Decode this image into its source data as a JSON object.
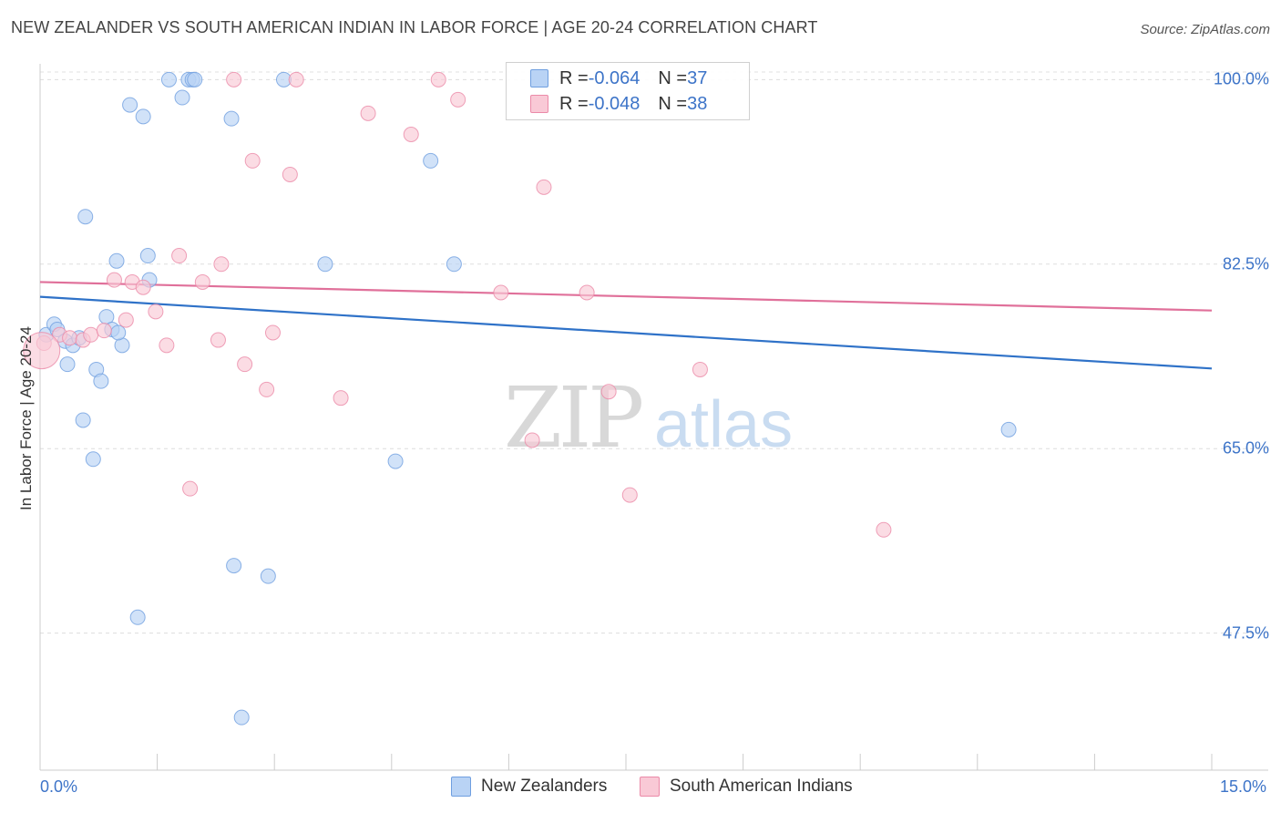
{
  "title": "NEW ZEALANDER VS SOUTH AMERICAN INDIAN IN LABOR FORCE | AGE 20-24 CORRELATION CHART",
  "source": "Source: ZipAtlas.com",
  "watermark": {
    "zip": "ZIP",
    "atlas": "atlas"
  },
  "legend": {
    "rows": [
      {
        "r_label": "R = ",
        "r_value": "-0.064",
        "n_label": "N = ",
        "n_value": "37"
      },
      {
        "r_label": "R = ",
        "r_value": "-0.048",
        "n_label": "N = ",
        "n_value": "38"
      }
    ]
  },
  "chart_data": {
    "type": "scatter",
    "title": "NEW ZEALANDER VS SOUTH AMERICAN INDIAN IN LABOR FORCE | AGE 20-24 CORRELATION CHART",
    "xlabel": "",
    "ylabel": "In Labor Force | Age 20-24",
    "xlim": [
      0,
      15
    ],
    "ylim": [
      34.5,
      101.5
    ],
    "x_tick_labels": [
      "0.0%",
      "15.0%"
    ],
    "y_tick_values": [
      100.0,
      82.5,
      65.0,
      47.5
    ],
    "y_tick_labels": [
      "100.0%",
      "82.5%",
      "65.0%",
      "47.5%"
    ],
    "grid": true,
    "colors": {
      "blue": "#6f9fe0",
      "blue_fill": "#b9d3f5",
      "blue_line": "#2f72c8",
      "pink": "#eb8aa8",
      "pink_fill": "#f9c9d6",
      "pink_line": "#e0709a"
    },
    "series": [
      {
        "name": "New Zealanders",
        "r": -0.064,
        "n": 37,
        "trend": {
          "x": [
            0,
            15
          ],
          "y": [
            79.4,
            72.6
          ]
        },
        "points": [
          [
            0.08,
            75.8
          ],
          [
            0.18,
            76.8
          ],
          [
            0.22,
            76.3
          ],
          [
            0.32,
            75.2
          ],
          [
            0.35,
            73.0
          ],
          [
            0.42,
            74.8
          ],
          [
            0.55,
            67.7
          ],
          [
            0.58,
            87.0
          ],
          [
            0.68,
            64.0
          ],
          [
            0.72,
            72.5
          ],
          [
            0.78,
            71.4
          ],
          [
            0.85,
            77.5
          ],
          [
            0.92,
            76.3
          ],
          [
            0.98,
            82.8
          ],
          [
            1.05,
            74.8
          ],
          [
            1.15,
            97.6
          ],
          [
            1.25,
            49.0
          ],
          [
            1.32,
            96.5
          ],
          [
            1.38,
            83.3
          ],
          [
            1.4,
            81.0
          ],
          [
            1.65,
            100.0
          ],
          [
            1.82,
            98.3
          ],
          [
            1.9,
            100.0
          ],
          [
            1.95,
            100.0
          ],
          [
            1.98,
            100.0
          ],
          [
            2.45,
            96.3
          ],
          [
            2.48,
            53.9
          ],
          [
            2.58,
            39.5
          ],
          [
            2.92,
            52.9
          ],
          [
            3.12,
            100.0
          ],
          [
            3.65,
            82.5
          ],
          [
            4.55,
            63.8
          ],
          [
            5.0,
            92.3
          ],
          [
            5.3,
            82.5
          ],
          [
            12.4,
            66.8
          ],
          [
            0.5,
            75.5
          ],
          [
            1.0,
            76.0
          ]
        ]
      },
      {
        "name": "South American Indians",
        "r": -0.048,
        "n": 38,
        "trend": {
          "x": [
            0,
            15
          ],
          "y": [
            80.8,
            78.1
          ]
        },
        "points": [
          [
            0.05,
            75.0
          ],
          [
            0.25,
            75.8
          ],
          [
            0.38,
            75.5
          ],
          [
            0.55,
            75.3
          ],
          [
            0.65,
            75.8
          ],
          [
            0.82,
            76.2
          ],
          [
            0.95,
            81.0
          ],
          [
            1.1,
            77.2
          ],
          [
            1.18,
            80.8
          ],
          [
            1.32,
            80.3
          ],
          [
            1.48,
            78.0
          ],
          [
            1.62,
            74.8
          ],
          [
            1.78,
            83.3
          ],
          [
            1.92,
            61.2
          ],
          [
            2.08,
            80.8
          ],
          [
            2.28,
            75.3
          ],
          [
            2.32,
            82.5
          ],
          [
            2.48,
            100.0
          ],
          [
            2.62,
            73.0
          ],
          [
            2.72,
            92.3
          ],
          [
            2.9,
            70.6
          ],
          [
            2.98,
            76.0
          ],
          [
            3.2,
            91.0
          ],
          [
            3.28,
            100.0
          ],
          [
            3.85,
            69.8
          ],
          [
            4.2,
            96.8
          ],
          [
            4.75,
            94.8
          ],
          [
            5.1,
            100.0
          ],
          [
            5.35,
            98.1
          ],
          [
            5.9,
            79.8
          ],
          [
            6.3,
            65.8
          ],
          [
            6.45,
            89.8
          ],
          [
            7.0,
            79.8
          ],
          [
            7.28,
            70.4
          ],
          [
            7.55,
            60.6
          ],
          [
            8.45,
            72.5
          ],
          [
            10.8,
            57.3
          ],
          [
            0.02,
            74.3
          ]
        ]
      }
    ]
  }
}
